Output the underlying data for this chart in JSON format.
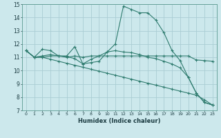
{
  "xlabel": "Humidex (Indice chaleur)",
  "xlim": [
    -0.5,
    23.5
  ],
  "ylim": [
    7,
    15
  ],
  "background_color": "#cce8ec",
  "grid_color": "#aacdd4",
  "line_color": "#2e7b6e",
  "series": [
    {
      "x": [
        0,
        1,
        2,
        3,
        4,
        5,
        6,
        7,
        8,
        9,
        10,
        11,
        12,
        13,
        14,
        15,
        16,
        17,
        18,
        19,
        20,
        21,
        22,
        23
      ],
      "y": [
        11.5,
        11.0,
        11.1,
        11.2,
        11.1,
        11.05,
        10.9,
        10.5,
        10.6,
        10.7,
        11.4,
        12.0,
        14.85,
        14.6,
        14.35,
        14.35,
        13.8,
        12.85,
        11.5,
        10.75,
        9.5,
        8.3,
        7.6,
        7.4
      ]
    },
    {
      "x": [
        0,
        1,
        2,
        3,
        4,
        5,
        6,
        7,
        8,
        9,
        10,
        11,
        12,
        13,
        14,
        15,
        16,
        17,
        18,
        19,
        20,
        21,
        22,
        23
      ],
      "y": [
        11.5,
        11.0,
        11.0,
        11.1,
        11.1,
        11.0,
        11.1,
        11.0,
        11.1,
        11.1,
        11.1,
        11.1,
        11.1,
        11.1,
        11.1,
        11.1,
        11.1,
        11.1,
        11.1,
        11.1,
        11.1,
        10.8,
        10.75,
        10.7
      ]
    },
    {
      "x": [
        0,
        1,
        2,
        3,
        4,
        5,
        6,
        7,
        8,
        9,
        10,
        11,
        12,
        13,
        14,
        15,
        16,
        17,
        18,
        19,
        20,
        21,
        22,
        23
      ],
      "y": [
        11.5,
        11.0,
        11.6,
        11.5,
        11.1,
        11.1,
        11.8,
        10.5,
        10.85,
        11.1,
        11.4,
        11.5,
        11.4,
        11.35,
        11.2,
        11.0,
        10.9,
        10.7,
        10.5,
        10.2,
        9.5,
        8.3,
        7.6,
        7.4
      ]
    },
    {
      "x": [
        0,
        1,
        2,
        3,
        4,
        5,
        6,
        7,
        8,
        9,
        10,
        11,
        12,
        13,
        14,
        15,
        16,
        17,
        18,
        19,
        20,
        21,
        22,
        23
      ],
      "y": [
        11.5,
        11.0,
        11.0,
        10.85,
        10.7,
        10.55,
        10.4,
        10.25,
        10.1,
        9.95,
        9.8,
        9.65,
        9.5,
        9.35,
        9.2,
        9.05,
        8.9,
        8.75,
        8.6,
        8.45,
        8.3,
        8.15,
        7.8,
        7.4
      ]
    }
  ]
}
